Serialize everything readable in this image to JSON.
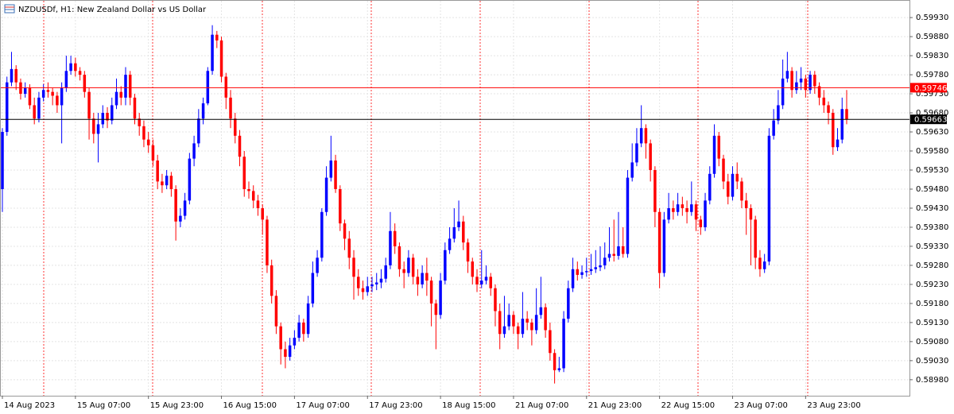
{
  "chart_data": {
    "type": "candlestick",
    "title": "NZDUSDf, H1:  New Zealand Dollar vs US Dollar",
    "bull_color": "#0000ff",
    "bear_color": "#ff0000",
    "grid": true,
    "ylim": [
      0.58938,
      0.59974
    ],
    "yticks": [
      {
        "value": 0.5993,
        "label": "0.59930"
      },
      {
        "value": 0.5988,
        "label": "0.59880"
      },
      {
        "value": 0.5983,
        "label": "0.59830"
      },
      {
        "value": 0.5978,
        "label": "0.59780"
      },
      {
        "value": 0.5973,
        "label": "0.59730"
      },
      {
        "value": 0.5968,
        "label": "0.59680"
      },
      {
        "value": 0.5963,
        "label": "0.59630"
      },
      {
        "value": 0.5958,
        "label": "0.59580"
      },
      {
        "value": 0.5953,
        "label": "0.59530"
      },
      {
        "value": 0.5948,
        "label": "0.59480"
      },
      {
        "value": 0.5943,
        "label": "0.59430"
      },
      {
        "value": 0.5938,
        "label": "0.59380"
      },
      {
        "value": 0.5933,
        "label": "0.59330"
      },
      {
        "value": 0.5928,
        "label": "0.59280"
      },
      {
        "value": 0.5923,
        "label": "0.59230"
      },
      {
        "value": 0.5918,
        "label": "0.59180"
      },
      {
        "value": 0.5913,
        "label": "0.59130"
      },
      {
        "value": 0.5908,
        "label": "0.59080"
      },
      {
        "value": 0.5903,
        "label": "0.59030"
      },
      {
        "value": 0.5898,
        "label": "0.58980"
      }
    ],
    "price_lines": [
      {
        "value": 0.59746,
        "color": "#ff0000"
      },
      {
        "value": 0.59663,
        "color": "#000000"
      }
    ],
    "categories": [
      "14 Aug 2023",
      null,
      null,
      null,
      null,
      null,
      null,
      null,
      null,
      null,
      null,
      null,
      null,
      null,
      null,
      null,
      "15 Aug 07:00",
      null,
      null,
      null,
      null,
      null,
      null,
      null,
      null,
      null,
      null,
      null,
      null,
      null,
      null,
      null,
      "15 Aug 23:00",
      null,
      null,
      null,
      null,
      null,
      null,
      null,
      null,
      null,
      null,
      null,
      null,
      null,
      null,
      null,
      "16 Aug 15:00",
      null,
      null,
      null,
      null,
      null,
      null,
      null,
      null,
      null,
      null,
      null,
      null,
      null,
      null,
      null,
      "17 Aug 07:00",
      null,
      null,
      null,
      null,
      null,
      null,
      null,
      null,
      null,
      null,
      null,
      null,
      null,
      null,
      null,
      "17 Aug 23:00",
      null,
      null,
      null,
      null,
      null,
      null,
      null,
      null,
      null,
      null,
      null,
      null,
      null,
      null,
      null,
      "18 Aug 15:00",
      null,
      null,
      null,
      null,
      null,
      null,
      null,
      null,
      null,
      null,
      null,
      null,
      null,
      null,
      null,
      "21 Aug 07:00",
      null,
      null,
      null,
      null,
      null,
      null,
      null,
      null,
      null,
      null,
      null,
      null,
      null,
      null,
      null,
      "21 Aug 23:00",
      null,
      null,
      null,
      null,
      null,
      null,
      null,
      null,
      null,
      null,
      null,
      null,
      null,
      null,
      null,
      "22 Aug 15:00",
      null,
      null,
      null,
      null,
      null,
      null,
      null,
      null,
      null,
      null,
      null,
      null,
      null,
      null,
      null,
      "23 Aug 07:00",
      null,
      null,
      null,
      null,
      null,
      null,
      null,
      null,
      null,
      null,
      null,
      null,
      null,
      null,
      null,
      "23 Aug 23:00",
      null,
      null,
      null,
      null,
      null,
      null,
      null,
      null,
      null
    ],
    "candles": [
      [
        0.5948,
        0.5964,
        0.5942,
        0.5963
      ],
      [
        0.5963,
        0.59775,
        0.5962,
        0.5976
      ],
      [
        0.5976,
        0.5984,
        0.5975,
        0.59795
      ],
      [
        0.59795,
        0.59805,
        0.5974,
        0.5976
      ],
      [
        0.5976,
        0.5977,
        0.59715,
        0.5973
      ],
      [
        0.5973,
        0.5976,
        0.5972,
        0.59745
      ],
      [
        0.59745,
        0.59755,
        0.5969,
        0.597
      ],
      [
        0.597,
        0.5972,
        0.5965,
        0.59665
      ],
      [
        0.59665,
        0.59735,
        0.59655,
        0.5972
      ],
      [
        0.5972,
        0.59755,
        0.5971,
        0.5974
      ],
      [
        0.5974,
        0.5976,
        0.5972,
        0.59735
      ],
      [
        0.59735,
        0.59745,
        0.597,
        0.59725
      ],
      [
        0.59725,
        0.59735,
        0.5968,
        0.597
      ],
      [
        0.597,
        0.5976,
        0.596,
        0.59745
      ],
      [
        0.59745,
        0.5983,
        0.59735,
        0.5979
      ],
      [
        0.5979,
        0.5983,
        0.5978,
        0.5981
      ],
      [
        0.5981,
        0.59825,
        0.59775,
        0.5979
      ],
      [
        0.5979,
        0.598,
        0.59765,
        0.5978
      ],
      [
        0.5978,
        0.5979,
        0.5972,
        0.59735
      ],
      [
        0.59735,
        0.59745,
        0.5961,
        0.59665
      ],
      [
        0.59665,
        0.5968,
        0.596,
        0.59625
      ],
      [
        0.59625,
        0.5968,
        0.5955,
        0.5965
      ],
      [
        0.5965,
        0.597,
        0.5964,
        0.5968
      ],
      [
        0.5968,
        0.59695,
        0.5964,
        0.5966
      ],
      [
        0.5966,
        0.5972,
        0.5965,
        0.597
      ],
      [
        0.597,
        0.5977,
        0.5969,
        0.59735
      ],
      [
        0.59735,
        0.5975,
        0.597,
        0.5972
      ],
      [
        0.5972,
        0.598,
        0.597,
        0.5978
      ],
      [
        0.5978,
        0.5979,
        0.597,
        0.5972
      ],
      [
        0.5972,
        0.5973,
        0.5965,
        0.59665
      ],
      [
        0.59665,
        0.5968,
        0.5962,
        0.59645
      ],
      [
        0.59645,
        0.5966,
        0.5959,
        0.5961
      ],
      [
        0.5961,
        0.5963,
        0.59575,
        0.59595
      ],
      [
        0.59595,
        0.5961,
        0.5954,
        0.59555
      ],
      [
        0.59555,
        0.5957,
        0.5948,
        0.595
      ],
      [
        0.595,
        0.5952,
        0.5947,
        0.5949
      ],
      [
        0.5949,
        0.5953,
        0.5948,
        0.59515
      ],
      [
        0.59515,
        0.59525,
        0.5946,
        0.5948
      ],
      [
        0.5948,
        0.5949,
        0.59345,
        0.59395
      ],
      [
        0.59395,
        0.5943,
        0.5938,
        0.5941
      ],
      [
        0.5941,
        0.5947,
        0.594,
        0.5945
      ],
      [
        0.5945,
        0.59575,
        0.5944,
        0.5956
      ],
      [
        0.5956,
        0.5962,
        0.5954,
        0.596
      ],
      [
        0.596,
        0.5969,
        0.5959,
        0.59665
      ],
      [
        0.59665,
        0.5972,
        0.5965,
        0.59705
      ],
      [
        0.59705,
        0.598,
        0.597,
        0.5979
      ],
      [
        0.5979,
        0.5991,
        0.5978,
        0.59885
      ],
      [
        0.59885,
        0.59895,
        0.5985,
        0.5987
      ],
      [
        0.5987,
        0.5988,
        0.5976,
        0.59775
      ],
      [
        0.59775,
        0.59785,
        0.5969,
        0.5972
      ],
      [
        0.5972,
        0.5974,
        0.5964,
        0.59665
      ],
      [
        0.59665,
        0.5968,
        0.596,
        0.5962
      ],
      [
        0.5962,
        0.59635,
        0.5954,
        0.59565
      ],
      [
        0.59565,
        0.5958,
        0.5946,
        0.5948
      ],
      [
        0.5948,
        0.595,
        0.59455,
        0.59475
      ],
      [
        0.59475,
        0.5949,
        0.5943,
        0.5945
      ],
      [
        0.5945,
        0.59465,
        0.5941,
        0.5943
      ],
      [
        0.5943,
        0.5944,
        0.5936,
        0.594
      ],
      [
        0.594,
        0.5941,
        0.5926,
        0.5928
      ],
      [
        0.5928,
        0.59295,
        0.5918,
        0.592
      ],
      [
        0.592,
        0.59215,
        0.591,
        0.5912
      ],
      [
        0.5912,
        0.5913,
        0.5902,
        0.5906
      ],
      [
        0.5906,
        0.5908,
        0.5901,
        0.5904
      ],
      [
        0.5904,
        0.5909,
        0.5903,
        0.5907
      ],
      [
        0.5907,
        0.5911,
        0.5906,
        0.5909
      ],
      [
        0.5909,
        0.5915,
        0.5908,
        0.5913
      ],
      [
        0.5913,
        0.5914,
        0.5908,
        0.591
      ],
      [
        0.591,
        0.592,
        0.5909,
        0.5918
      ],
      [
        0.5918,
        0.5929,
        0.5917,
        0.5926
      ],
      [
        0.5926,
        0.5932,
        0.5925,
        0.593
      ],
      [
        0.593,
        0.5943,
        0.5929,
        0.5942
      ],
      [
        0.5942,
        0.5954,
        0.5941,
        0.5951
      ],
      [
        0.5951,
        0.5962,
        0.595,
        0.59555
      ],
      [
        0.59555,
        0.5957,
        0.5947,
        0.5948
      ],
      [
        0.5948,
        0.5949,
        0.5937,
        0.5939
      ],
      [
        0.5939,
        0.594,
        0.5932,
        0.5935
      ],
      [
        0.5935,
        0.5937,
        0.5927,
        0.593
      ],
      [
        0.593,
        0.5932,
        0.5919,
        0.5925
      ],
      [
        0.5925,
        0.5927,
        0.592,
        0.5922
      ],
      [
        0.5922,
        0.5924,
        0.5919,
        0.5921
      ],
      [
        0.5921,
        0.5925,
        0.592,
        0.59225
      ],
      [
        0.59225,
        0.5925,
        0.5921,
        0.5923
      ],
      [
        0.5923,
        0.5926,
        0.59215,
        0.59235
      ],
      [
        0.59235,
        0.5927,
        0.5922,
        0.59245
      ],
      [
        0.59245,
        0.593,
        0.59235,
        0.5928
      ],
      [
        0.5928,
        0.5942,
        0.5927,
        0.5937
      ],
      [
        0.5937,
        0.5939,
        0.5931,
        0.5933
      ],
      [
        0.5933,
        0.5934,
        0.5925,
        0.5927
      ],
      [
        0.5927,
        0.5929,
        0.5922,
        0.5926
      ],
      [
        0.5926,
        0.5932,
        0.5925,
        0.593
      ],
      [
        0.593,
        0.5931,
        0.5923,
        0.5925
      ],
      [
        0.5925,
        0.5927,
        0.592,
        0.5923
      ],
      [
        0.5923,
        0.5928,
        0.5922,
        0.5926
      ],
      [
        0.5926,
        0.593,
        0.592,
        0.5924
      ],
      [
        0.5924,
        0.5925,
        0.5912,
        0.5918
      ],
      [
        0.5918,
        0.5919,
        0.5906,
        0.5915
      ],
      [
        0.5915,
        0.5926,
        0.5914,
        0.5924
      ],
      [
        0.5924,
        0.5934,
        0.5923,
        0.5932
      ],
      [
        0.5932,
        0.5938,
        0.5931,
        0.5935
      ],
      [
        0.5935,
        0.5943,
        0.5934,
        0.5938
      ],
      [
        0.5938,
        0.5945,
        0.5937,
        0.59395
      ],
      [
        0.59395,
        0.5941,
        0.5932,
        0.5934
      ],
      [
        0.5934,
        0.5935,
        0.5926,
        0.5929
      ],
      [
        0.5929,
        0.593,
        0.5923,
        0.5925
      ],
      [
        0.5925,
        0.5927,
        0.5921,
        0.5923
      ],
      [
        0.5923,
        0.5932,
        0.5922,
        0.5924
      ],
      [
        0.5924,
        0.5928,
        0.5923,
        0.5925
      ],
      [
        0.5925,
        0.5926,
        0.592,
        0.5922
      ],
      [
        0.5922,
        0.5923,
        0.5912,
        0.5916
      ],
      [
        0.5916,
        0.5918,
        0.5906,
        0.591
      ],
      [
        0.591,
        0.592,
        0.5909,
        0.5912
      ],
      [
        0.5912,
        0.5918,
        0.5911,
        0.5915
      ],
      [
        0.5915,
        0.5916,
        0.591,
        0.5912
      ],
      [
        0.5912,
        0.5913,
        0.5906,
        0.591
      ],
      [
        0.591,
        0.5921,
        0.5909,
        0.5914
      ],
      [
        0.5914,
        0.5916,
        0.5911,
        0.5913
      ],
      [
        0.5913,
        0.5914,
        0.5907,
        0.5911
      ],
      [
        0.5911,
        0.5922,
        0.591,
        0.5915
      ],
      [
        0.5915,
        0.5925,
        0.5914,
        0.5917
      ],
      [
        0.5917,
        0.5918,
        0.5909,
        0.5911
      ],
      [
        0.5911,
        0.5913,
        0.5903,
        0.5905
      ],
      [
        0.5905,
        0.5906,
        0.5897,
        0.59005
      ],
      [
        0.59005,
        0.5904,
        0.59,
        0.5901
      ],
      [
        0.5901,
        0.5916,
        0.59,
        0.5914
      ],
      [
        0.5914,
        0.5924,
        0.5913,
        0.5922
      ],
      [
        0.5922,
        0.593,
        0.5921,
        0.5927
      ],
      [
        0.5927,
        0.5929,
        0.5924,
        0.59255
      ],
      [
        0.59255,
        0.5928,
        0.59245,
        0.59262
      ],
      [
        0.59262,
        0.593,
        0.5925,
        0.59265
      ],
      [
        0.59265,
        0.5931,
        0.59255,
        0.5927
      ],
      [
        0.5927,
        0.5932,
        0.5926,
        0.59275
      ],
      [
        0.59275,
        0.5933,
        0.59265,
        0.5928
      ],
      [
        0.5928,
        0.5934,
        0.5927,
        0.593
      ],
      [
        0.593,
        0.5938,
        0.5929,
        0.5931
      ],
      [
        0.5931,
        0.594,
        0.5929,
        0.59305
      ],
      [
        0.59305,
        0.5942,
        0.59295,
        0.5933
      ],
      [
        0.5933,
        0.5938,
        0.593,
        0.5931
      ],
      [
        0.5931,
        0.5953,
        0.593,
        0.5951
      ],
      [
        0.5951,
        0.596,
        0.595,
        0.5955
      ],
      [
        0.5955,
        0.5964,
        0.5954,
        0.596
      ],
      [
        0.596,
        0.597,
        0.5959,
        0.5964
      ],
      [
        0.5964,
        0.5965,
        0.5956,
        0.596
      ],
      [
        0.596,
        0.5961,
        0.595,
        0.5953
      ],
      [
        0.5953,
        0.5954,
        0.5938,
        0.5942
      ],
      [
        0.5942,
        0.5943,
        0.5922,
        0.5926
      ],
      [
        0.5926,
        0.5942,
        0.5925,
        0.594
      ],
      [
        0.594,
        0.5947,
        0.5939,
        0.5943
      ],
      [
        0.5943,
        0.5945,
        0.594,
        0.5942
      ],
      [
        0.5942,
        0.5947,
        0.5941,
        0.5944
      ],
      [
        0.5944,
        0.5946,
        0.5941,
        0.5943
      ],
      [
        0.5943,
        0.5945,
        0.5939,
        0.5942
      ],
      [
        0.5942,
        0.595,
        0.5941,
        0.5944
      ],
      [
        0.5944,
        0.5945,
        0.5937,
        0.594
      ],
      [
        0.594,
        0.5941,
        0.5936,
        0.5938
      ],
      [
        0.5938,
        0.5947,
        0.5937,
        0.5945
      ],
      [
        0.5945,
        0.5954,
        0.5944,
        0.5952
      ],
      [
        0.5952,
        0.5965,
        0.5951,
        0.5962
      ],
      [
        0.5962,
        0.5963,
        0.5954,
        0.5956
      ],
      [
        0.5956,
        0.5957,
        0.5948,
        0.595
      ],
      [
        0.595,
        0.5952,
        0.5944,
        0.5946
      ],
      [
        0.5946,
        0.5954,
        0.5945,
        0.5952
      ],
      [
        0.5952,
        0.5955,
        0.5948,
        0.595
      ],
      [
        0.595,
        0.5951,
        0.5943,
        0.5945
      ],
      [
        0.5945,
        0.5947,
        0.5936,
        0.5943
      ],
      [
        0.5943,
        0.5944,
        0.5928,
        0.594
      ],
      [
        0.594,
        0.5941,
        0.5927,
        0.593
      ],
      [
        0.593,
        0.5932,
        0.5925,
        0.5927
      ],
      [
        0.5927,
        0.5931,
        0.5926,
        0.5929
      ],
      [
        0.5929,
        0.5964,
        0.5928,
        0.5962
      ],
      [
        0.5962,
        0.5969,
        0.5961,
        0.5966
      ],
      [
        0.5966,
        0.5974,
        0.5965,
        0.597
      ],
      [
        0.597,
        0.5982,
        0.5969,
        0.5977
      ],
      [
        0.5977,
        0.5984,
        0.5976,
        0.5979
      ],
      [
        0.5979,
        0.598,
        0.5972,
        0.5974
      ],
      [
        0.5974,
        0.5979,
        0.5973,
        0.5976
      ],
      [
        0.5976,
        0.598,
        0.5974,
        0.5977
      ],
      [
        0.5977,
        0.5978,
        0.5972,
        0.5974
      ],
      [
        0.5974,
        0.5979,
        0.5973,
        0.5978
      ],
      [
        0.5978,
        0.5979,
        0.5973,
        0.5975
      ],
      [
        0.5975,
        0.5976,
        0.597,
        0.5972
      ],
      [
        0.5972,
        0.5974,
        0.5968,
        0.597
      ],
      [
        0.597,
        0.5971,
        0.5965,
        0.5968
      ],
      [
        0.5968,
        0.5969,
        0.5957,
        0.5959
      ],
      [
        0.5959,
        0.5964,
        0.5958,
        0.5961
      ],
      [
        0.5961,
        0.5972,
        0.596,
        0.5969
      ],
      [
        0.5969,
        0.5974,
        0.5965,
        0.59663
      ]
    ]
  }
}
